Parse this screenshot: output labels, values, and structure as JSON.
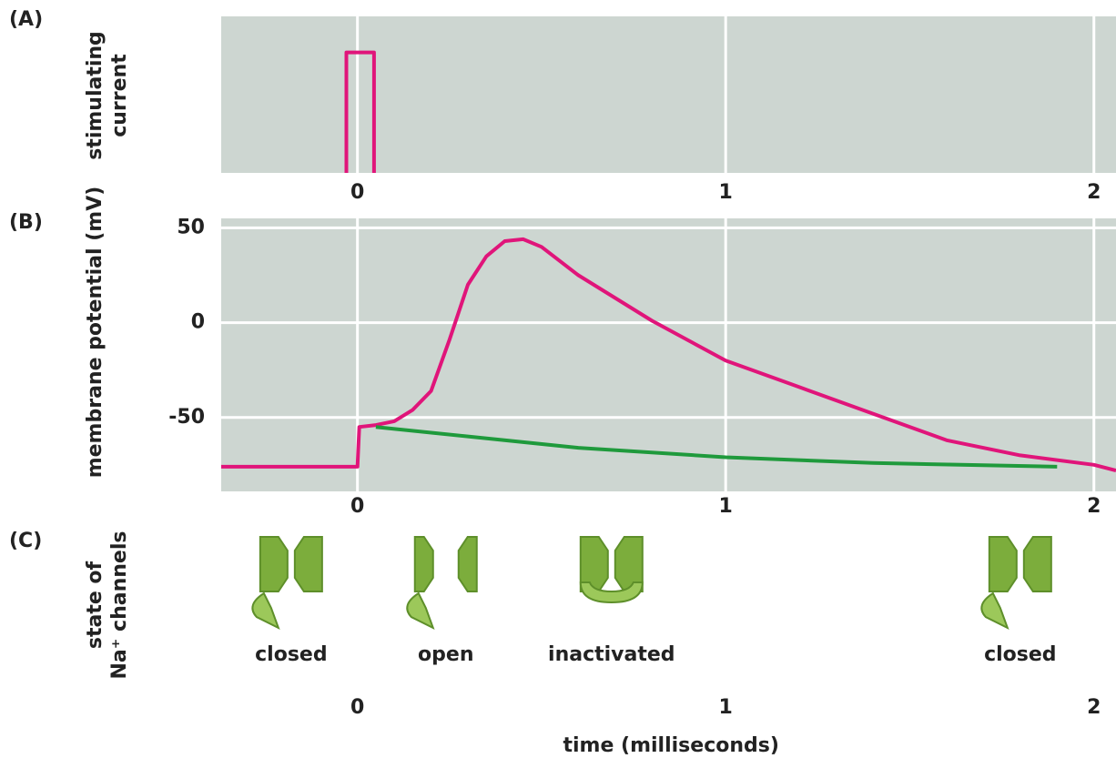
{
  "chart_data": [
    {
      "type": "line",
      "panel": "(A)",
      "ylabel": [
        "stimulating",
        "current"
      ],
      "x": [
        -0.03,
        -0.03,
        0.045,
        0.045
      ],
      "values": [
        0,
        0.77,
        0.77,
        0
      ],
      "color": "#e0157a",
      "xlim": [
        -0.37,
        2.06
      ],
      "xticks": [
        0,
        1,
        2
      ],
      "ylim": [
        0,
        1
      ],
      "grid": true
    },
    {
      "type": "line",
      "panel": "(B)",
      "ylabel": [
        "membrane potential (mV)"
      ],
      "series": [
        {
          "color": "#e0157a",
          "x": [
            -0.37,
            0,
            0.005,
            0.05,
            0.1,
            0.15,
            0.2,
            0.25,
            0.3,
            0.35,
            0.4,
            0.45,
            0.5,
            0.6,
            0.8,
            1.0,
            1.2,
            1.4,
            1.6,
            1.8,
            2.0,
            2.06
          ],
          "values": [
            -76,
            -76,
            -55,
            -54,
            -52,
            -46,
            -36,
            -9,
            20,
            35,
            43,
            44,
            40,
            25,
            1,
            -20,
            -34,
            -48,
            -62,
            -70,
            -75,
            -78
          ]
        },
        {
          "color": "#1f9a3c",
          "x": [
            0.05,
            0.3,
            0.6,
            1.0,
            1.4,
            1.9
          ],
          "values": [
            -55,
            -60,
            -66,
            -71,
            -74,
            -76
          ]
        }
      ],
      "xlim": [
        -0.37,
        2.06
      ],
      "xticks": [
        0,
        1,
        2
      ],
      "ylim": [
        -89,
        55
      ],
      "yticks": [
        -50,
        0,
        50
      ],
      "grid": true
    },
    {
      "type": "states",
      "panel": "(C)",
      "ylabel": [
        "state of",
        "Na⁺ channels"
      ],
      "states": [
        {
          "label": "closed",
          "x": -0.18
        },
        {
          "label": "open",
          "x": 0.24
        },
        {
          "label": "inactivated",
          "x": 0.69
        },
        {
          "label": "closed",
          "x": 1.8
        }
      ],
      "xlim": [
        -0.37,
        2.06
      ],
      "xticks": [
        0,
        1,
        2
      ],
      "xlabel": "time (milliseconds)"
    }
  ]
}
